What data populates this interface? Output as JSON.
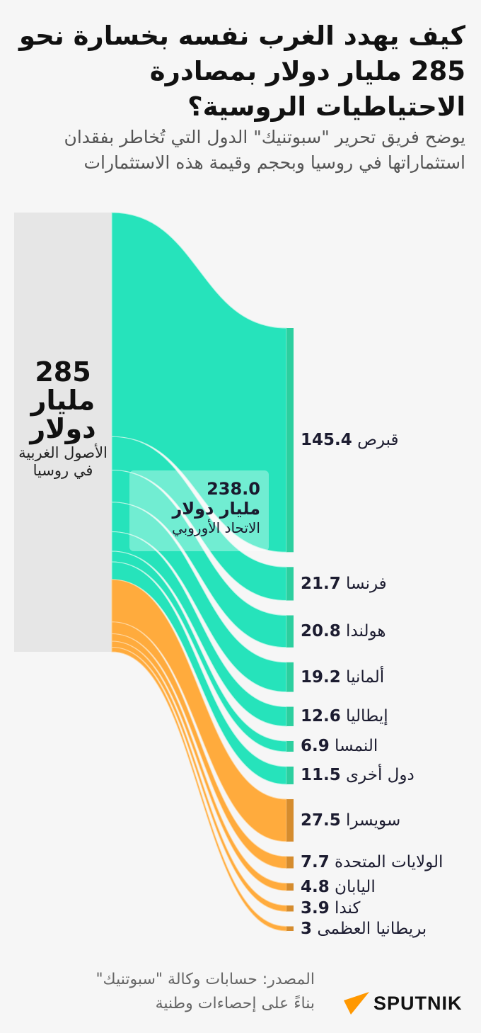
{
  "title": "كيف يهدد الغرب نفسه بخسارة نحو 285 مليار دولار بمصادرة الاحتياطيات الروسية؟",
  "subtitle": "يوضح فريق تحرير \"سبوتنيك\" الدول التي تُخاطر بفقدان استثماراتها في روسيا وبحجم وقيمة هذه الاستثمارات",
  "chart_data": {
    "type": "sankey",
    "unit": "مليار دولار",
    "source_node": {
      "value": "285",
      "unit_label": "مليار دولار",
      "label": "الأصول الغربية في روسيا",
      "color": "#e6e6e6"
    },
    "groups": [
      {
        "id": "eu",
        "value": "238.0",
        "unit_label": "مليار دولار",
        "label": "الاتحاد الأوروبي",
        "color": "#26e3bb",
        "node_color": "#2ccf9f"
      },
      {
        "id": "other",
        "color": "#ffab3d",
        "node_color": "#d58c2e"
      }
    ],
    "targets": [
      {
        "name": "قبرص",
        "value": 145.4,
        "group": "eu"
      },
      {
        "name": "فرنسا",
        "value": 21.7,
        "group": "eu"
      },
      {
        "name": "هولندا",
        "value": 20.8,
        "group": "eu"
      },
      {
        "name": "ألمانيا",
        "value": 19.2,
        "group": "eu"
      },
      {
        "name": "إيطاليا",
        "value": 12.6,
        "group": "eu"
      },
      {
        "name": "النمسا",
        "value": 6.9,
        "group": "eu"
      },
      {
        "name": "دول أخرى",
        "value": 11.5,
        "group": "eu"
      },
      {
        "name": "سويسرا",
        "value": 27.5,
        "group": "other"
      },
      {
        "name": "الولايات المتحدة",
        "value": 7.7,
        "group": "other"
      },
      {
        "name": "اليابان",
        "value": 4.8,
        "group": "other"
      },
      {
        "name": "كندا",
        "value": 3.9,
        "group": "other"
      },
      {
        "name": "بريطانيا العظمى",
        "value": 3,
        "group": "other"
      }
    ]
  },
  "footer": {
    "source_line1": "المصدر: حسابات وكالة \"سبوتنيك\"",
    "source_line2": "بناءً على إحصاءات وطنية",
    "logo_text": "SPUTNIK",
    "logo_color": "#ff9800"
  }
}
